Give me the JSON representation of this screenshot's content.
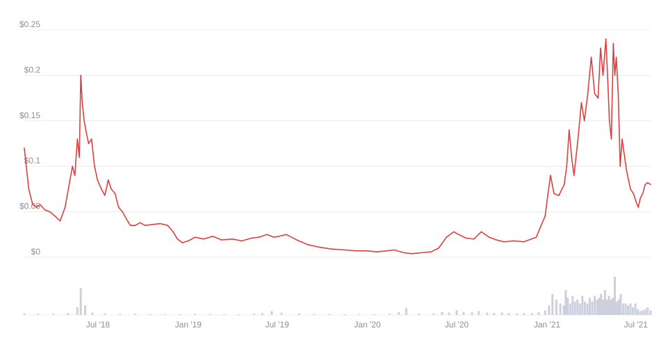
{
  "chart_data": [
    {
      "type": "line",
      "x_unit": "date",
      "xlim": [
        "2018-02-01",
        "2021-07-31"
      ],
      "ylim": [
        0,
        0.25
      ],
      "y_ticks": [
        {
          "value": 0,
          "label": "$0"
        },
        {
          "value": 0.05,
          "label": "$0.05"
        },
        {
          "value": 0.1,
          "label": "$0.1"
        },
        {
          "value": 0.15,
          "label": "$0.15"
        },
        {
          "value": 0.2,
          "label": "$0.2"
        },
        {
          "value": 0.25,
          "label": "$0.25"
        }
      ],
      "x_ticks": [
        {
          "date": "2018-07-01",
          "label": "Jul '18"
        },
        {
          "date": "2019-01-01",
          "label": "Jan '19"
        },
        {
          "date": "2019-07-01",
          "label": "Jul '19"
        },
        {
          "date": "2020-01-01",
          "label": "Jan '20"
        },
        {
          "date": "2020-07-01",
          "label": "Jul '20"
        },
        {
          "date": "2021-01-01",
          "label": "Jan '21"
        },
        {
          "date": "2021-07-01",
          "label": "Jul '21"
        }
      ],
      "grid": true,
      "line_color": "#e03e3e",
      "grid_color": "#ececf0",
      "tick_color": "#8a8f99",
      "x": [
        "2018-02-01",
        "2018-02-04",
        "2018-02-10",
        "2018-02-18",
        "2018-02-26",
        "2018-03-05",
        "2018-03-15",
        "2018-03-25",
        "2018-04-05",
        "2018-04-15",
        "2018-04-25",
        "2018-05-05",
        "2018-05-10",
        "2018-05-15",
        "2018-05-20",
        "2018-05-24",
        "2018-05-27",
        "2018-05-30",
        "2018-06-03",
        "2018-06-08",
        "2018-06-12",
        "2018-06-18",
        "2018-06-24",
        "2018-06-30",
        "2018-07-08",
        "2018-07-15",
        "2018-07-22",
        "2018-07-28",
        "2018-08-05",
        "2018-08-12",
        "2018-08-20",
        "2018-08-28",
        "2018-09-05",
        "2018-09-15",
        "2018-09-25",
        "2018-10-05",
        "2018-10-20",
        "2018-11-05",
        "2018-11-20",
        "2018-12-01",
        "2018-12-10",
        "2018-12-20",
        "2019-01-01",
        "2019-01-15",
        "2019-02-01",
        "2019-02-20",
        "2019-03-10",
        "2019-04-01",
        "2019-04-20",
        "2019-05-10",
        "2019-05-25",
        "2019-06-10",
        "2019-06-25",
        "2019-07-05",
        "2019-07-20",
        "2019-08-10",
        "2019-09-01",
        "2019-09-25",
        "2019-10-20",
        "2019-11-15",
        "2019-12-10",
        "2020-01-01",
        "2020-01-20",
        "2020-02-10",
        "2020-02-25",
        "2020-03-15",
        "2020-04-01",
        "2020-04-20",
        "2020-05-10",
        "2020-05-25",
        "2020-06-10",
        "2020-06-25",
        "2020-07-05",
        "2020-07-20",
        "2020-08-05",
        "2020-08-20",
        "2020-09-05",
        "2020-09-20",
        "2020-10-05",
        "2020-10-25",
        "2020-11-15",
        "2020-11-30",
        "2020-12-10",
        "2020-12-20",
        "2020-12-28",
        "2021-01-03",
        "2021-01-08",
        "2021-01-15",
        "2021-01-25",
        "2021-02-05",
        "2021-02-10",
        "2021-02-15",
        "2021-02-20",
        "2021-02-25",
        "2021-03-05",
        "2021-03-12",
        "2021-03-18",
        "2021-03-25",
        "2021-04-01",
        "2021-04-08",
        "2021-04-15",
        "2021-04-20",
        "2021-04-25",
        "2021-04-28",
        "2021-05-01",
        "2021-05-05",
        "2021-05-08",
        "2021-05-12",
        "2021-05-16",
        "2021-05-19",
        "2021-05-22",
        "2021-05-26",
        "2021-05-30",
        "2021-06-03",
        "2021-06-08",
        "2021-06-12",
        "2021-06-16",
        "2021-06-20",
        "2021-06-26",
        "2021-07-02",
        "2021-07-06",
        "2021-07-10",
        "2021-07-15",
        "2021-07-20",
        "2021-07-25",
        "2021-07-31"
      ],
      "y": [
        0.12,
        0.105,
        0.075,
        0.058,
        0.055,
        0.058,
        0.052,
        0.05,
        0.045,
        0.04,
        0.055,
        0.085,
        0.1,
        0.09,
        0.13,
        0.11,
        0.2,
        0.17,
        0.15,
        0.135,
        0.125,
        0.13,
        0.1,
        0.085,
        0.075,
        0.068,
        0.085,
        0.075,
        0.07,
        0.055,
        0.05,
        0.042,
        0.035,
        0.035,
        0.038,
        0.035,
        0.036,
        0.037,
        0.035,
        0.028,
        0.02,
        0.016,
        0.018,
        0.022,
        0.02,
        0.023,
        0.019,
        0.02,
        0.018,
        0.021,
        0.022,
        0.025,
        0.022,
        0.023,
        0.025,
        0.019,
        0.014,
        0.011,
        0.009,
        0.008,
        0.007,
        0.007,
        0.006,
        0.007,
        0.008,
        0.005,
        0.004,
        0.005,
        0.006,
        0.01,
        0.022,
        0.028,
        0.025,
        0.021,
        0.02,
        0.028,
        0.022,
        0.019,
        0.017,
        0.018,
        0.017,
        0.02,
        0.022,
        0.035,
        0.045,
        0.07,
        0.09,
        0.07,
        0.068,
        0.08,
        0.1,
        0.14,
        0.11,
        0.09,
        0.13,
        0.17,
        0.15,
        0.18,
        0.22,
        0.18,
        0.175,
        0.23,
        0.2,
        0.22,
        0.24,
        0.19,
        0.15,
        0.13,
        0.235,
        0.2,
        0.22,
        0.18,
        0.1,
        0.13,
        0.11,
        0.095,
        0.085,
        0.075,
        0.07,
        0.06,
        0.055,
        0.065,
        0.07,
        0.08,
        0.082,
        0.08
      ]
    },
    {
      "type": "bar",
      "title": "",
      "bar_color": "#ccd0de",
      "x": [
        "2018-02-01",
        "2018-03-01",
        "2018-04-01",
        "2018-05-01",
        "2018-05-20",
        "2018-05-27",
        "2018-06-05",
        "2018-06-20",
        "2018-07-15",
        "2018-08-15",
        "2018-09-15",
        "2018-10-15",
        "2018-11-15",
        "2018-12-15",
        "2019-01-15",
        "2019-02-15",
        "2019-03-15",
        "2019-04-15",
        "2019-05-15",
        "2019-06-01",
        "2019-06-20",
        "2019-07-10",
        "2019-08-15",
        "2019-09-15",
        "2019-10-15",
        "2019-11-15",
        "2019-12-15",
        "2020-01-15",
        "2020-02-15",
        "2020-03-05",
        "2020-03-20",
        "2020-04-15",
        "2020-05-15",
        "2020-06-01",
        "2020-06-15",
        "2020-07-01",
        "2020-07-15",
        "2020-08-01",
        "2020-08-15",
        "2020-09-01",
        "2020-09-15",
        "2020-10-01",
        "2020-10-15",
        "2020-11-01",
        "2020-11-15",
        "2020-12-01",
        "2020-12-15",
        "2020-12-28",
        "2021-01-05",
        "2021-01-12",
        "2021-01-20",
        "2021-01-28",
        "2021-02-04",
        "2021-02-08",
        "2021-02-12",
        "2021-02-17",
        "2021-02-22",
        "2021-02-27",
        "2021-03-04",
        "2021-03-09",
        "2021-03-14",
        "2021-03-19",
        "2021-03-24",
        "2021-03-29",
        "2021-04-03",
        "2021-04-08",
        "2021-04-13",
        "2021-04-17",
        "2021-04-21",
        "2021-04-25",
        "2021-04-29",
        "2021-05-03",
        "2021-05-07",
        "2021-05-11",
        "2021-05-15",
        "2021-05-19",
        "2021-05-23",
        "2021-05-27",
        "2021-05-31",
        "2021-06-05",
        "2021-06-10",
        "2021-06-15",
        "2021-06-20",
        "2021-06-25",
        "2021-06-30",
        "2021-07-05",
        "2021-07-10",
        "2021-07-15",
        "2021-07-20",
        "2021-07-25",
        "2021-07-31"
      ],
      "values": [
        0.04,
        0.03,
        0.03,
        0.05,
        0.2,
        0.7,
        0.25,
        0.06,
        0.04,
        0.03,
        0.03,
        0.02,
        0.02,
        0.02,
        0.03,
        0.02,
        0.02,
        0.02,
        0.03,
        0.05,
        0.1,
        0.06,
        0.04,
        0.02,
        0.02,
        0.02,
        0.02,
        0.02,
        0.03,
        0.08,
        0.18,
        0.03,
        0.04,
        0.08,
        0.06,
        0.12,
        0.08,
        0.07,
        0.1,
        0.06,
        0.05,
        0.06,
        0.05,
        0.04,
        0.05,
        0.05,
        0.07,
        0.12,
        0.25,
        0.55,
        0.4,
        0.3,
        0.25,
        0.65,
        0.45,
        0.3,
        0.5,
        0.35,
        0.4,
        0.3,
        0.5,
        0.35,
        0.3,
        0.45,
        0.35,
        0.5,
        0.4,
        0.45,
        0.55,
        0.4,
        0.65,
        0.4,
        0.5,
        0.4,
        0.45,
        1.0,
        0.35,
        0.4,
        0.55,
        0.3,
        0.3,
        0.25,
        0.3,
        0.2,
        0.3,
        0.15,
        0.1,
        0.12,
        0.15,
        0.2,
        0.12
      ]
    }
  ]
}
